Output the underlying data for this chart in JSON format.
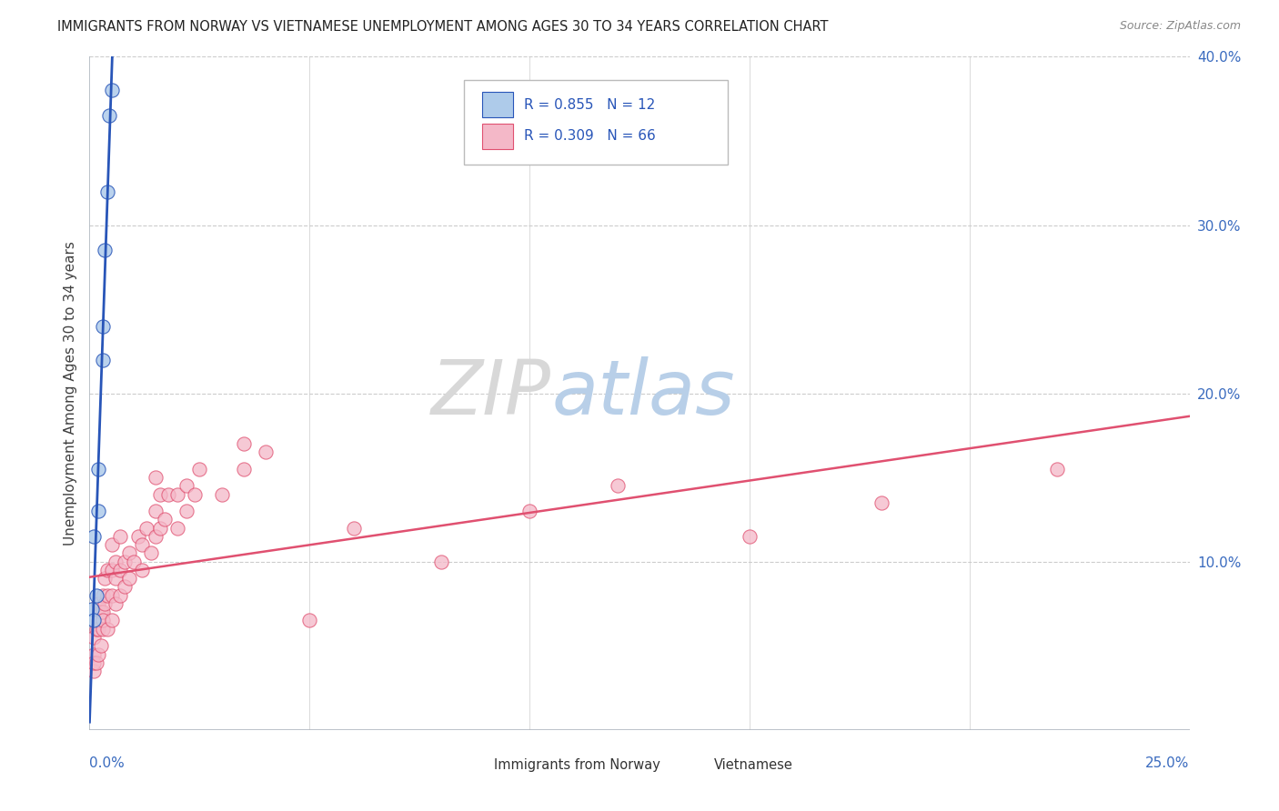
{
  "title": "IMMIGRANTS FROM NORWAY VS VIETNAMESE UNEMPLOYMENT AMONG AGES 30 TO 34 YEARS CORRELATION CHART",
  "source": "Source: ZipAtlas.com",
  "ylabel": "Unemployment Among Ages 30 to 34 years",
  "xlim": [
    0,
    0.25
  ],
  "ylim": [
    0,
    0.4
  ],
  "legend_norway_r": "R = 0.855",
  "legend_norway_n": "N = 12",
  "legend_viet_r": "R = 0.309",
  "legend_viet_n": "N = 66",
  "norway_color": "#aecbea",
  "viet_color": "#f4b8c8",
  "norway_line_color": "#2855b8",
  "viet_line_color": "#e05070",
  "background_color": "#ffffff",
  "grid_color": "#cccccc",
  "norway_x": [
    0.0005,
    0.001,
    0.001,
    0.0015,
    0.002,
    0.002,
    0.003,
    0.003,
    0.0035,
    0.004,
    0.0045,
    0.005
  ],
  "norway_y": [
    0.072,
    0.065,
    0.115,
    0.08,
    0.13,
    0.155,
    0.22,
    0.24,
    0.285,
    0.32,
    0.365,
    0.38
  ],
  "viet_x": [
    0.001,
    0.001,
    0.001,
    0.001,
    0.0015,
    0.0015,
    0.002,
    0.002,
    0.002,
    0.002,
    0.0025,
    0.0025,
    0.003,
    0.003,
    0.003,
    0.003,
    0.0035,
    0.0035,
    0.004,
    0.004,
    0.004,
    0.005,
    0.005,
    0.005,
    0.005,
    0.006,
    0.006,
    0.006,
    0.007,
    0.007,
    0.007,
    0.008,
    0.008,
    0.009,
    0.009,
    0.01,
    0.011,
    0.012,
    0.012,
    0.013,
    0.014,
    0.015,
    0.015,
    0.015,
    0.016,
    0.016,
    0.017,
    0.018,
    0.02,
    0.02,
    0.022,
    0.022,
    0.024,
    0.025,
    0.03,
    0.035,
    0.035,
    0.04,
    0.05,
    0.06,
    0.08,
    0.1,
    0.12,
    0.15,
    0.18,
    0.22
  ],
  "viet_y": [
    0.045,
    0.035,
    0.04,
    0.055,
    0.04,
    0.06,
    0.045,
    0.06,
    0.065,
    0.075,
    0.05,
    0.07,
    0.06,
    0.07,
    0.08,
    0.065,
    0.075,
    0.09,
    0.06,
    0.08,
    0.095,
    0.065,
    0.08,
    0.095,
    0.11,
    0.075,
    0.09,
    0.1,
    0.08,
    0.095,
    0.115,
    0.085,
    0.1,
    0.09,
    0.105,
    0.1,
    0.115,
    0.095,
    0.11,
    0.12,
    0.105,
    0.115,
    0.13,
    0.15,
    0.12,
    0.14,
    0.125,
    0.14,
    0.12,
    0.14,
    0.13,
    0.145,
    0.14,
    0.155,
    0.14,
    0.155,
    0.17,
    0.165,
    0.065,
    0.12,
    0.1,
    0.13,
    0.145,
    0.115,
    0.135,
    0.155
  ]
}
